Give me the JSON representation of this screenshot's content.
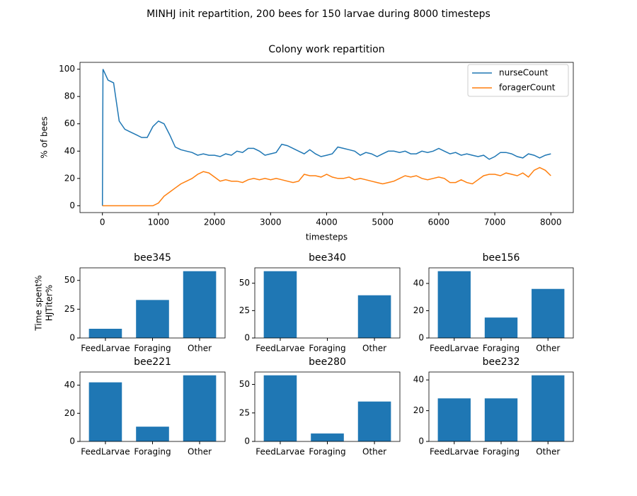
{
  "title": "MINHJ init repartition, 200 bees for 150 larvae during 8000 timesteps",
  "chart_data": [
    {
      "type": "line",
      "title": "Colony work repartition",
      "xlabel": "timesteps",
      "ylabel": "% of bees",
      "x": [
        0,
        10,
        100,
        200,
        300,
        400,
        500,
        600,
        700,
        800,
        900,
        1000,
        1100,
        1200,
        1300,
        1400,
        1500,
        1600,
        1700,
        1800,
        1900,
        2000,
        2100,
        2200,
        2300,
        2400,
        2500,
        2600,
        2700,
        2800,
        2900,
        3000,
        3100,
        3200,
        3300,
        3400,
        3500,
        3600,
        3700,
        3800,
        3900,
        4000,
        4100,
        4200,
        4300,
        4400,
        4500,
        4600,
        4700,
        4800,
        4900,
        5000,
        5100,
        5200,
        5300,
        5400,
        5500,
        5600,
        5700,
        5800,
        5900,
        6000,
        6100,
        6200,
        6300,
        6400,
        6500,
        6600,
        6700,
        6800,
        6900,
        7000,
        7100,
        7200,
        7300,
        7400,
        7500,
        7600,
        7700,
        7800,
        7900,
        8000
      ],
      "series": [
        {
          "name": "nurseCount",
          "color": "#1f77b4",
          "values": [
            0,
            100,
            92,
            90,
            62,
            56,
            54,
            52,
            50,
            50,
            58,
            62,
            60,
            52,
            43,
            41,
            40,
            39,
            37,
            38,
            37,
            37,
            36,
            38,
            37,
            40,
            39,
            42,
            42,
            40,
            37,
            38,
            39,
            45,
            44,
            42,
            40,
            38,
            41,
            38,
            36,
            37,
            38,
            43,
            42,
            41,
            40,
            37,
            39,
            38,
            36,
            38,
            40,
            40,
            39,
            40,
            38,
            38,
            40,
            39,
            40,
            42,
            40,
            38,
            39,
            37,
            38,
            37,
            36,
            37,
            34,
            36,
            39,
            39,
            38,
            36,
            35,
            38,
            37,
            35,
            37,
            38
          ]
        },
        {
          "name": "foragerCount",
          "color": "#ff7f0e",
          "values": [
            0,
            0,
            0,
            0,
            0,
            0,
            0,
            0,
            0,
            0,
            0,
            2,
            7,
            10,
            13,
            16,
            18,
            20,
            23,
            25,
            24,
            21,
            18,
            19,
            18,
            18,
            17,
            19,
            20,
            19,
            20,
            19,
            20,
            19,
            18,
            17,
            18,
            23,
            22,
            22,
            21,
            23,
            21,
            20,
            20,
            21,
            19,
            20,
            19,
            18,
            17,
            16,
            17,
            18,
            20,
            22,
            21,
            22,
            20,
            19,
            20,
            21,
            20,
            17,
            17,
            19,
            17,
            16,
            19,
            22,
            23,
            23,
            22,
            24,
            23,
            22,
            24,
            21,
            26,
            28,
            26,
            22
          ]
        }
      ],
      "xlim": [
        -400,
        8400
      ],
      "ylim": [
        -5,
        105
      ],
      "xticks": [
        0,
        1000,
        2000,
        3000,
        4000,
        5000,
        6000,
        7000,
        8000
      ],
      "yticks": [
        0,
        20,
        40,
        60,
        80,
        100
      ],
      "legend": "upper right"
    },
    {
      "type": "bar",
      "title": "bee345",
      "ylabel": [
        "Time spent%",
        "HJTiter%"
      ],
      "categories": [
        "FeedLarvae",
        "Foraging",
        "Other"
      ],
      "values": [
        8,
        33,
        58
      ],
      "color": "#1f77b4",
      "ylim": [
        0,
        60.9
      ],
      "yticks": [
        0,
        25,
        50
      ]
    },
    {
      "type": "bar",
      "title": "bee340",
      "categories": [
        "FeedLarvae",
        "Foraging",
        "Other"
      ],
      "values": [
        61,
        0,
        39
      ],
      "color": "#1f77b4",
      "ylim": [
        0,
        64.05
      ],
      "yticks": [
        0,
        25,
        50
      ]
    },
    {
      "type": "bar",
      "title": "bee156",
      "categories": [
        "FeedLarvae",
        "Foraging",
        "Other"
      ],
      "values": [
        49,
        15,
        36
      ],
      "color": "#1f77b4",
      "ylim": [
        0,
        51.45
      ],
      "yticks": [
        0,
        20,
        40
      ]
    },
    {
      "type": "bar",
      "title": "bee221",
      "categories": [
        "FeedLarvae",
        "Foraging",
        "Other"
      ],
      "values": [
        42,
        10.5,
        47
      ],
      "color": "#1f77b4",
      "ylim": [
        0,
        49.35
      ],
      "yticks": [
        0,
        20,
        40
      ]
    },
    {
      "type": "bar",
      "title": "bee280",
      "categories": [
        "FeedLarvae",
        "Foraging",
        "Other"
      ],
      "values": [
        58,
        7,
        35
      ],
      "color": "#1f77b4",
      "ylim": [
        0,
        60.9
      ],
      "yticks": [
        0,
        25,
        50
      ]
    },
    {
      "type": "bar",
      "title": "bee232",
      "categories": [
        "FeedLarvae",
        "Foraging",
        "Other"
      ],
      "values": [
        28,
        28,
        43
      ],
      "color": "#1f77b4",
      "ylim": [
        0,
        45.15
      ],
      "yticks": [
        0,
        20,
        40
      ]
    }
  ]
}
